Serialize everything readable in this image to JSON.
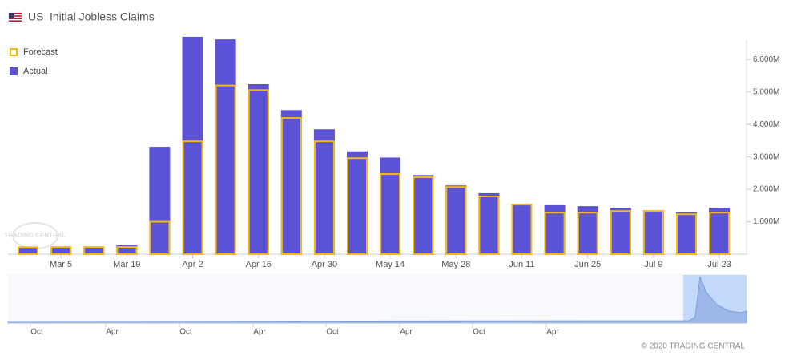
{
  "header": {
    "country": "US",
    "title": "Initial Jobless Claims"
  },
  "chart_data": {
    "type": "bar",
    "categories": [
      null,
      "Mar 5",
      null,
      "Mar 19",
      null,
      "Apr 2",
      null,
      "Apr 16",
      null,
      "Apr 30",
      null,
      "May 14",
      null,
      "May 28",
      null,
      "Jun 11",
      null,
      "Jun 25",
      null,
      "Jul 9",
      null,
      "Jul 23"
    ],
    "series": [
      {
        "name": "Actual",
        "color": "#5b52d6",
        "values": [
          220000,
          210000,
          210000,
          280000,
          3310000,
          6700000,
          6620000,
          5240000,
          4440000,
          3850000,
          3170000,
          2980000,
          2440000,
          2120000,
          1880000,
          1540000,
          1510000,
          1480000,
          1430000,
          1350000,
          1300000,
          1430000
        ]
      },
      {
        "name": "Forecast",
        "color": "#f5b90a",
        "values": [
          215000,
          220000,
          220000,
          220000,
          1000000,
          3480000,
          5200000,
          5060000,
          4200000,
          3480000,
          2960000,
          2470000,
          2370000,
          2070000,
          1780000,
          1530000,
          1280000,
          1280000,
          1330000,
          1330000,
          1230000,
          1280000
        ]
      }
    ],
    "ylim": [
      0,
      6500000
    ],
    "yticks": [
      {
        "value": 1000000,
        "label": "1.000M"
      },
      {
        "value": 2000000,
        "label": "2.000M"
      },
      {
        "value": 3000000,
        "label": "3.000M"
      },
      {
        "value": 4000000,
        "label": "4.000M"
      },
      {
        "value": 5000000,
        "label": "5.000M"
      },
      {
        "value": 6000000,
        "label": "6.000M"
      }
    ],
    "legend": "top-left"
  },
  "navigator": {
    "labels": [
      "Oct",
      "Apr",
      "Oct",
      "Apr",
      "Oct",
      "Apr",
      "Oct",
      "Apr"
    ]
  },
  "watermark": "TRADING CENTRAL",
  "footer": "© 2020 TRADING CENTRAL"
}
